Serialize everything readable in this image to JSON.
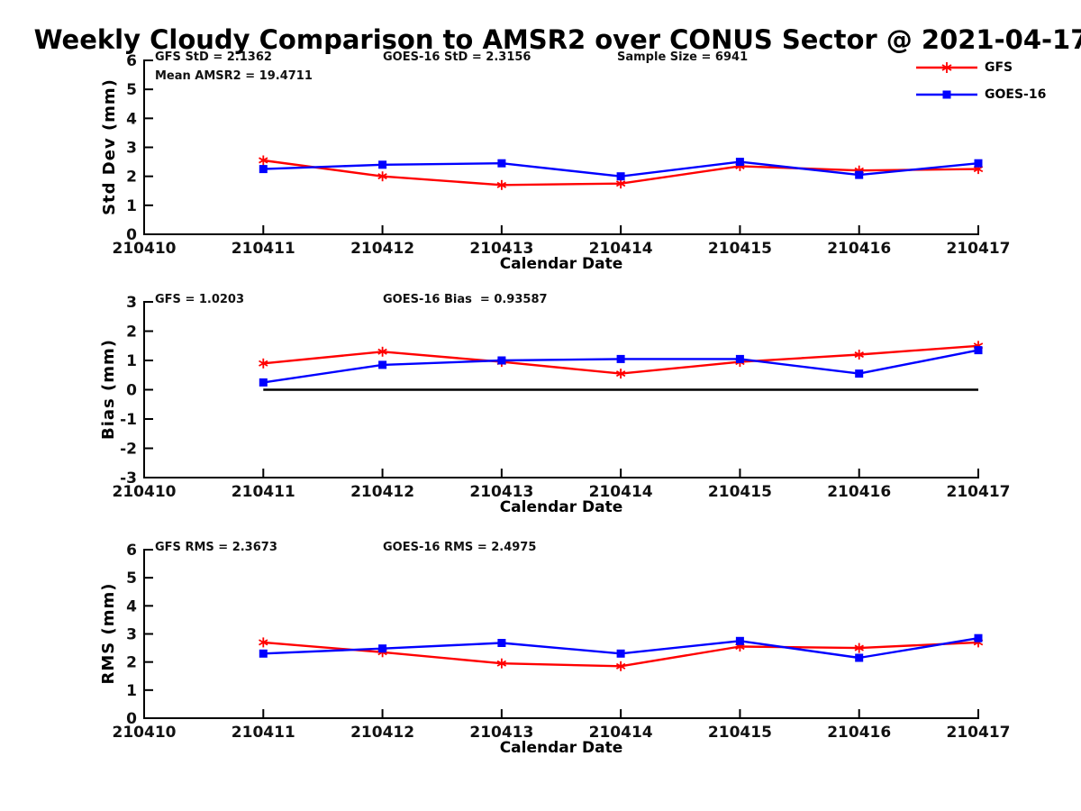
{
  "title": "Weekly Cloudy Comparison to AMSR2 over CONUS Sector @ 2021-04-17",
  "colors": {
    "gfs": "#ff0000",
    "goes16": "#0000ff",
    "axis": "#000000"
  },
  "legend": {
    "entries": [
      {
        "label": "GFS",
        "color": "#ff0000",
        "marker": "asterisk"
      },
      {
        "label": "GOES-16",
        "color": "#0000ff",
        "marker": "square"
      }
    ]
  },
  "x_categories": [
    "210410",
    "210411",
    "210412",
    "210413",
    "210414",
    "210415",
    "210416",
    "210417"
  ],
  "chart_data": [
    {
      "type": "line",
      "id": "std-dev",
      "ylabel": "Std Dev (mm)",
      "xlabel": "Calendar Date",
      "ylim": [
        0,
        6
      ],
      "yticks": [
        0,
        1,
        2,
        3,
        4,
        5,
        6
      ],
      "x": [
        "210411",
        "210412",
        "210413",
        "210414",
        "210415",
        "210416",
        "210417"
      ],
      "series": [
        {
          "name": "GFS",
          "color": "#ff0000",
          "marker": "asterisk",
          "values": [
            2.55,
            2.0,
            1.7,
            1.75,
            2.35,
            2.2,
            2.25
          ]
        },
        {
          "name": "GOES-16",
          "color": "#0000ff",
          "marker": "square",
          "values": [
            2.25,
            2.4,
            2.45,
            2.0,
            2.5,
            2.05,
            2.45
          ]
        }
      ],
      "annotations": [
        {
          "text": "GFS StD = 2.1362"
        },
        {
          "text": "GOES-16 StD = 2.3156"
        },
        {
          "text": "Sample Size = 6941"
        },
        {
          "text": "Mean AMSR2 = 19.4711"
        }
      ],
      "legend_position": "top-right",
      "grid": false
    },
    {
      "type": "line",
      "id": "bias",
      "ylabel": "Bias (mm)",
      "xlabel": "Calendar Date",
      "ylim": [
        -3,
        3
      ],
      "yticks": [
        -3,
        -2,
        -1,
        0,
        1,
        2,
        3
      ],
      "zero_line": true,
      "x": [
        "210411",
        "210412",
        "210413",
        "210414",
        "210415",
        "210416",
        "210417"
      ],
      "series": [
        {
          "name": "GFS",
          "color": "#ff0000",
          "marker": "asterisk",
          "values": [
            0.9,
            1.3,
            0.95,
            0.55,
            0.95,
            1.2,
            1.5
          ]
        },
        {
          "name": "GOES-16",
          "color": "#0000ff",
          "marker": "square",
          "values": [
            0.25,
            0.85,
            1.0,
            1.05,
            1.05,
            0.55,
            1.35
          ]
        }
      ],
      "annotations": [
        {
          "text": "GFS = 1.0203"
        },
        {
          "text": "GOES-16 Bias  = 0.93587"
        }
      ],
      "grid": false
    },
    {
      "type": "line",
      "id": "rms",
      "ylabel": "RMS (mm)",
      "xlabel": "Calendar Date",
      "ylim": [
        0,
        6
      ],
      "yticks": [
        0,
        1,
        2,
        3,
        4,
        5,
        6
      ],
      "x": [
        "210411",
        "210412",
        "210413",
        "210414",
        "210415",
        "210416",
        "210417"
      ],
      "series": [
        {
          "name": "GFS",
          "color": "#ff0000",
          "marker": "asterisk",
          "values": [
            2.7,
            2.35,
            1.95,
            1.85,
            2.55,
            2.5,
            2.7
          ]
        },
        {
          "name": "GOES-16",
          "color": "#0000ff",
          "marker": "square",
          "values": [
            2.3,
            2.48,
            2.68,
            2.3,
            2.75,
            2.15,
            2.85
          ]
        }
      ],
      "annotations": [
        {
          "text": "GFS RMS = 2.3673"
        },
        {
          "text": "GOES-16 RMS = 2.4975"
        }
      ],
      "grid": false
    }
  ]
}
